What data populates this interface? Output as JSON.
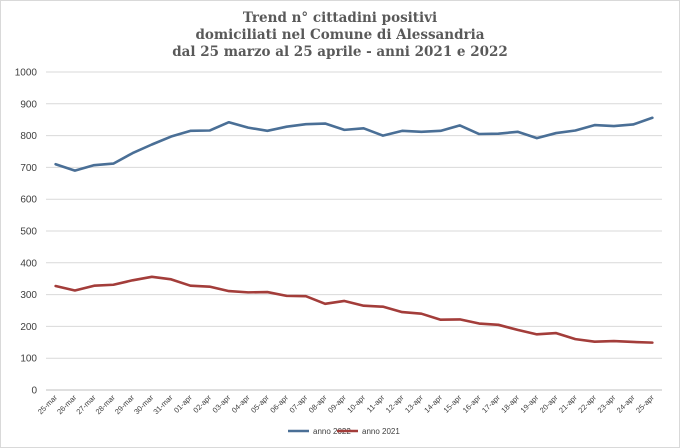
{
  "chart_data": {
    "type": "line",
    "title_lines": [
      "Trend n° cittadini positivi",
      "domiciliati nel Comune di Alessandria",
      "dal 25 marzo al 25 aprile - anni 2021 e 2022"
    ],
    "xlabel": "",
    "ylabel": "",
    "ylim": [
      0,
      1000
    ],
    "yticks": [
      "0",
      "100",
      "200",
      "300",
      "400",
      "500",
      "600",
      "700",
      "800",
      "900",
      "1000"
    ],
    "grid": true,
    "legend_position": "bottom",
    "categories": [
      "25-mar",
      "26-mar",
      "27-mar",
      "28-mar",
      "29-mar",
      "30-mar",
      "31-mar",
      "01-apr",
      "02-apr",
      "03-apr",
      "04-apr",
      "05-apr",
      "06-apr",
      "07-apr",
      "08-apr",
      "09-apr",
      "10-apr",
      "11-apr",
      "12-apr",
      "13-apr",
      "14-apr",
      "15-apr",
      "16-apr",
      "17-apr",
      "18-apr",
      "19-apr",
      "20-apr",
      "21-apr",
      "22-apr",
      "23-apr",
      "24-apr",
      "25-apr"
    ],
    "series": [
      {
        "name": "anno 2022",
        "color": "#4a6f96",
        "values": [
          710,
          690,
          707,
          712,
          745,
          772,
          797,
          815,
          816,
          842,
          825,
          815,
          828,
          836,
          838,
          818,
          823,
          800,
          815,
          812,
          815,
          832,
          805,
          806,
          812,
          792,
          808,
          816,
          833,
          830,
          835,
          856
        ]
      },
      {
        "name": "anno 2021",
        "color": "#a33d3a",
        "values": [
          327,
          313,
          328,
          331,
          345,
          356,
          348,
          328,
          325,
          311,
          307,
          308,
          296,
          295,
          271,
          280,
          265,
          262,
          245,
          240,
          221,
          222,
          209,
          205,
          189,
          175,
          179,
          160,
          152,
          154,
          151,
          149
        ]
      }
    ]
  }
}
